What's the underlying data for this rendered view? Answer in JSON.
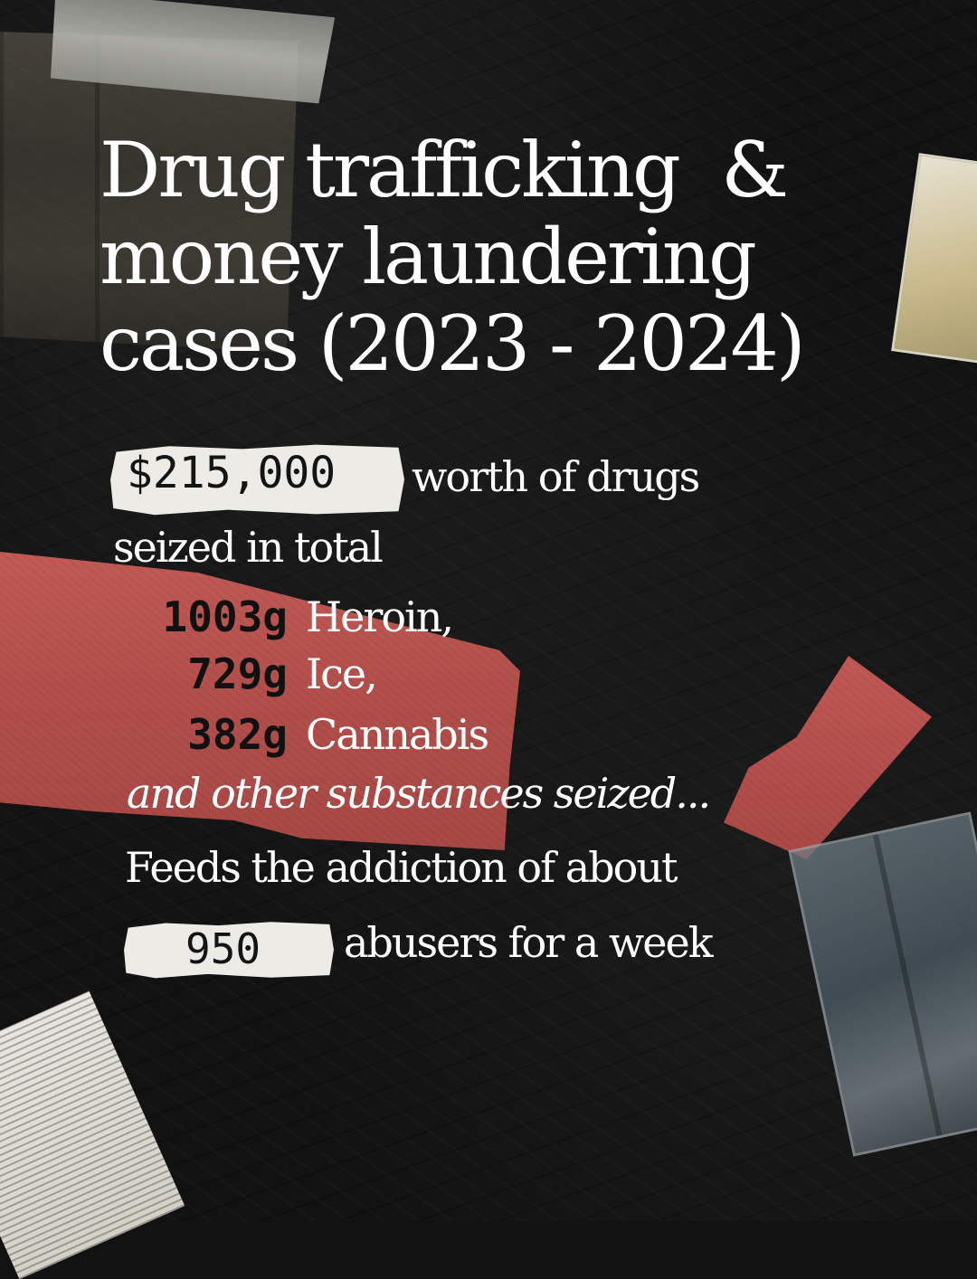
{
  "title": {
    "line1": "Drug trafficking  &",
    "line2": "money laundering",
    "line3": "cases (2023 - 2024)"
  },
  "seized_value": "$215,000",
  "worth_text": "worth of drugs",
  "seized_total_text": "seized in total",
  "drugs": [
    {
      "quantity": "1003g",
      "name": "Heroin,"
    },
    {
      "quantity": "729g",
      "name": "Ice,"
    },
    {
      "quantity": "382g",
      "name": "Cannabis"
    }
  ],
  "other_text": "and other substances seized...",
  "feeds_text": "Feeds the addiction of about",
  "abuser_count": "950",
  "abusers_text": "abusers for a week",
  "colors": {
    "background": "#121212",
    "red_paper": "#b24f4b",
    "white_paper": "#ecebe5",
    "text": "#ffffff"
  }
}
